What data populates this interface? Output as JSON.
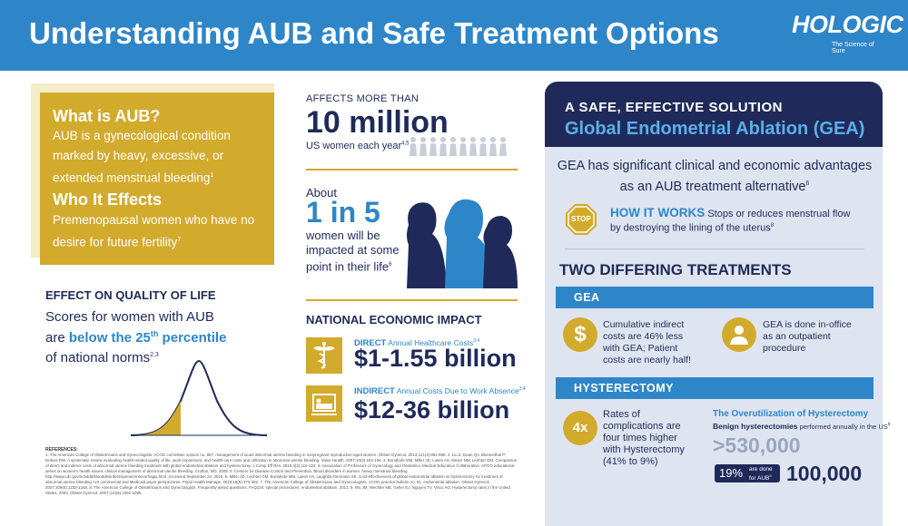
{
  "header": {
    "title": "Understanding AUB and Safe Treatment Options",
    "logo_word": "HOLOGIC",
    "logo_tagline": "The Science of Sure",
    "bg_color": "#2e86c8"
  },
  "what_is": {
    "heading": "What is AUB?",
    "text": "AUB is a gynecological condition marked by heavy, excessive, or extended menstrual bleeding",
    "ref": "1"
  },
  "who": {
    "heading": "Who It Effects",
    "text": "Premenopausal women who have no desire for future fertility",
    "ref": "7"
  },
  "qol": {
    "heading": "EFFECT ON QUALITY OF LIFE",
    "line1": "Scores for women with AUB",
    "are": "are",
    "highlight_a": "below the 25",
    "sup": "th",
    "highlight_b": " percentile",
    "line3": "of national norms",
    "ref": "2,3"
  },
  "affects": {
    "label": "AFFECTS MORE THAN",
    "number": "10 million",
    "sub": "US women each year",
    "ref": "4,5"
  },
  "one_in_five": {
    "about": "About",
    "big": "1 in 5",
    "rest": "women will be impacted at some point in their life",
    "ref": "6"
  },
  "economic": {
    "heading": "NATIONAL ECONOMIC IMPACT",
    "direct_label": "DIRECT",
    "direct_desc": "Annual Healthcare Costs",
    "direct_ref": "3,4",
    "direct_value": "$1-1.55 billion",
    "indirect_label": "INDIRECT",
    "indirect_desc": "Annual Costs Due to Work Absence",
    "indirect_ref": "3,4",
    "indirect_value": "$12-36 billion"
  },
  "solution": {
    "line1": "A SAFE, EFFECTIVE SOLUTION",
    "line2": "Global Endometrial Ablation (GEA)",
    "intro": "GEA has significant clinical and economic advantages as an AUB treatment alternative",
    "intro_ref": "6",
    "how_heading": "HOW IT WORKS",
    "how_text": "Stops or reduces menstrual flow by destroying the lining of the uterus",
    "how_ref": "8",
    "stop_sign": "STOP"
  },
  "treatments": {
    "heading": "TWO DIFFERING TREATMENTS",
    "gea_bar": "GEA",
    "gea_cost_text": "Cumulative indirect costs are 46% less with GEA; Patient costs are nearly half!",
    "gea_office_text": "GEA is done in-office as an outpatient procedure",
    "hyst_bar": "HYSTERECTOMY",
    "hyst_badge": "4x",
    "hyst_text": "Rates of complications are four times higher with Hysterectomy (41% to 9%)",
    "over_heading": "The Overutilization of Hysterectomy",
    "over_sub_bold": "Benign hysterectomies",
    "over_sub_rest": " performed annually in the US",
    "over_sub_ref": "9",
    "big_total": ">530,000",
    "pct": "19%",
    "pct_note": "are done for AUB",
    "pct_ref": "9",
    "big_aub": "100,000"
  },
  "references": {
    "heading": "REFERENCES:",
    "text": "1. The American College of Obstetricians and Gynecologists. ACOG committee opinion no. 557: management of acute abnormal uterine bleeding in nonpregnant reproductive-aged women. Obstet Gynecol. 2013;121(4):891-896. 2. Liu Z, Doan QV, Blumenthal P, Dubois RW. A systematic review evaluating health-related quality of life, work impairment, and health-care costs and utilization in abnormal uterine bleeding. Value Health. 2007;10(3):183-194. 3. Bonafede MM, Miller JD, Lukes AS, Meyer NM, Lenhart GM. Comparison of direct and indirect costs of abnormal uterine bleeding treatment with global endometrial ablation and hysterectomy. J Comp Eff Res. 2015;4(2):115-122. 4. Association of Professors of Gynecology and Obstetrics, Medical Education Collaborative. APGO educational series on women's health issues: clinical management of abnormal uterine bleeding. Crofton, MD; 2006. 5. Centers for Disease Control and Prevention. Blood disorders in women: heavy menstrual bleeding. http://www.cdc.gov/ncbddd/blooddisorders/women/menorrhagia.html. Accessed September 24, 2015. 6. Miller JD, Lenhart GM, Bonafede MM, Lukes AS, Laughlin-Tommaso SK. Cost-effectiveness of global endometrial ablation vs hysterectomy for treatment of abnormal uterine bleeding: US commercial and Medicaid payer perspectives. Popul Health Manage. 2015;18(5):373-382. 7. The American College of Obstetricians and Gynecologists. ACOG practice bulletin no. 81: endometrial ablation. Obstet Gynecol. 2007;109(5):1233-1248. 8. The American College of Obstetricians and Gynecologists. Frequently asked questions: FAQ134: special procedures: endometrial ablation. 2013. 9. Wu JM, Wechter ME, Geller EJ, Nguyen TV, Visco AG. Hysterectomy rates in the United States, 2003. Obstet Gynecol. 2007;110(5):1091-1095."
  },
  "colors": {
    "navy": "#1f2a5a",
    "blue": "#2e86c8",
    "gold": "#d2aa2c",
    "panel": "#dfe5f0"
  }
}
